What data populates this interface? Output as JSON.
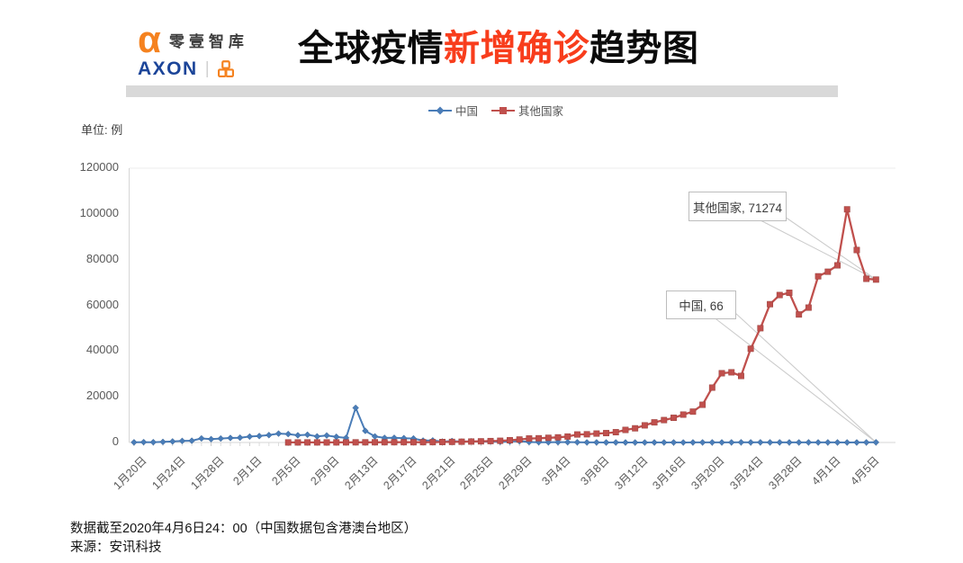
{
  "header": {
    "logo": {
      "alpha_glyph": "α",
      "brand": "零壹智库",
      "axon": "AXON",
      "divider": "|",
      "chain_icon": "chain-squares-icon",
      "colors": {
        "alpha": "#f5821f",
        "axon_blue": "#1c4599"
      }
    },
    "title": {
      "prefix": "全球疫情",
      "highlight": "新增确诊",
      "suffix": "趋势图",
      "highlight_color": "#f83d1c"
    }
  },
  "unit_label": "单位: 例",
  "chart_data": {
    "type": "line",
    "title": "全球疫情新增确诊趋势图",
    "ylabel": "单位: 例",
    "ylim": [
      0,
      120000
    ],
    "y_ticks": [
      0,
      20000,
      40000,
      60000,
      80000,
      100000,
      120000
    ],
    "grid": "none",
    "legend_position": "top-center",
    "n_points": 78,
    "x_tick_interval": 4,
    "x_tick_labels": [
      "1月20日",
      "1月24日",
      "1月28日",
      "2月1日",
      "2月5日",
      "2月9日",
      "2月13日",
      "2月17日",
      "2月21日",
      "2月25日",
      "2月29日",
      "3月4日",
      "3月8日",
      "3月12日",
      "3月16日",
      "3月20日",
      "3月24日",
      "3月28日",
      "4月1日",
      "4月5日"
    ],
    "series": [
      {
        "name": "中国",
        "color": "#4a7db8",
        "marker": "diamond",
        "start_index": 0,
        "values": [
          77,
          149,
          131,
          259,
          444,
          688,
          769,
          1771,
          1459,
          1737,
          1982,
          2102,
          2590,
          2829,
          3235,
          3887,
          3694,
          3143,
          3399,
          2656,
          3062,
          2478,
          2015,
          15152,
          5090,
          2641,
          2009,
          2048,
          1886,
          1749,
          820,
          889,
          397,
          648,
          409,
          508,
          406,
          433,
          327,
          427,
          573,
          202,
          125,
          119,
          139,
          143,
          99,
          44,
          40,
          19,
          24,
          15,
          8,
          11,
          20,
          16,
          21,
          13,
          34,
          39,
          41,
          46,
          39,
          78,
          47,
          67,
          55,
          54,
          45,
          31,
          48,
          36,
          35,
          31,
          19,
          30,
          39,
          66
        ]
      },
      {
        "name": "其他国家",
        "color": "#c0504d",
        "marker": "square",
        "start_index": 16,
        "values": [
          30,
          32,
          46,
          44,
          39,
          48,
          60,
          75,
          80,
          90,
          105,
          115,
          125,
          110,
          125,
          140,
          210,
          260,
          330,
          420,
          510,
          630,
          750,
          980,
          1300,
          1750,
          1850,
          2050,
          2250,
          2600,
          3500,
          3600,
          3900,
          4100,
          4500,
          5500,
          6200,
          7500,
          8800,
          9800,
          10800,
          12200,
          13500,
          16500,
          24000,
          30300,
          30700,
          29100,
          41000,
          50000,
          60500,
          64500,
          65500,
          56000,
          59000,
          72700,
          74700,
          77500,
          102000,
          84200,
          71600,
          71274
        ]
      }
    ]
  },
  "annotations": [
    {
      "series": "其他国家",
      "value": 71274,
      "text": "其他国家, 71274"
    },
    {
      "series": "中国",
      "value": 66,
      "text": "中国, 66"
    }
  ],
  "footer": {
    "line1": "数据截至2020年4月6日24：00（中国数据包含港澳台地区）",
    "line2": "来源：安讯科技"
  }
}
